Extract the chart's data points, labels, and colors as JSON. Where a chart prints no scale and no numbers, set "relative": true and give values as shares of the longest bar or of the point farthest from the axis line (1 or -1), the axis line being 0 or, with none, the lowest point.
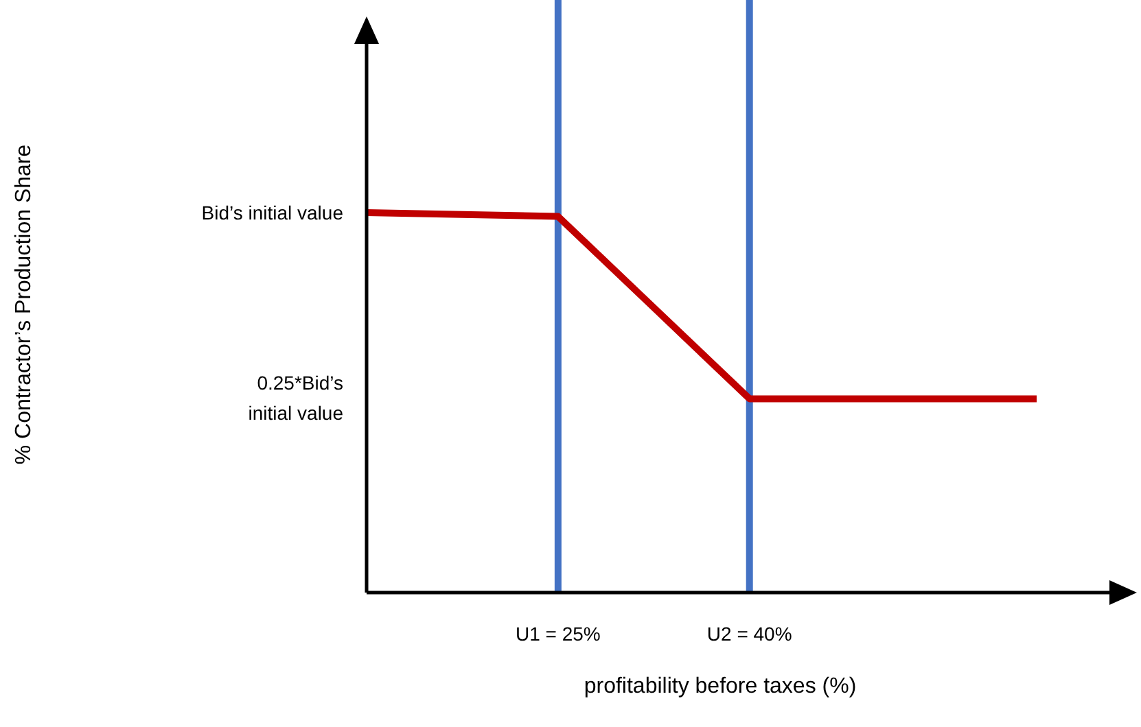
{
  "chart_data": {
    "type": "line",
    "relative": true,
    "xlabel": "profitability before taxes (%)",
    "categories": [
      null,
      null,
      "U1 = 25%",
      null,
      "U2 = 40%",
      null,
      null,
      null
    ],
    "series": [
      {
        "color": "#c00000",
        "values": [
          1,
          0.995,
          0.99,
          0.75,
          0.51,
          0.51,
          0.51,
          0.51
        ]
      }
    ],
    "annotations": [
      "% Contractor’s Production Share",
      "Bid’s initial value",
      "0.25*Bid’s initial value"
    ],
    "ref_lines": [
      {
        "axis": "x",
        "value": "U1 = 25%",
        "color": "#4472c4"
      },
      {
        "axis": "x",
        "value": "U2 = 40%",
        "color": "#4472c4"
      }
    ],
    "line_style": "solid",
    "marker": "none"
  }
}
